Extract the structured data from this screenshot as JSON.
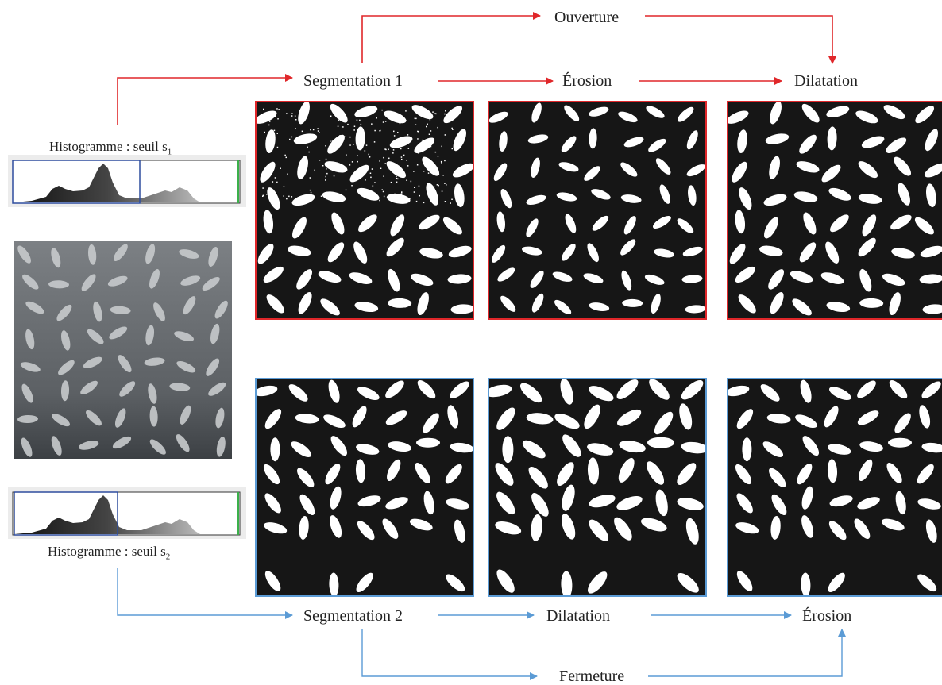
{
  "labels": {
    "ouverture": "Ouverture",
    "segmentation_1": "Segmentation 1",
    "erosion_top": "Érosion",
    "dilatation_top": "Dilatation",
    "segmentation_2": "Segmentation 2",
    "dilatation_bottom": "Dilatation",
    "erosion_bottom": "Érosion",
    "fermeture": "Fermeture"
  },
  "histograms": {
    "top_caption": "Histogramme : seuil s",
    "top_sub": "1",
    "bottom_caption": "Histogramme : seuil s",
    "bottom_sub": "2"
  },
  "colors": {
    "top_flow": "#e0272a",
    "bottom_flow": "#5b9bd5",
    "threshold_box": "#2e4d9e",
    "histogram_right_marker": "#3bb04a"
  },
  "icons": {
    "arrow": "arrow-right-icon"
  }
}
